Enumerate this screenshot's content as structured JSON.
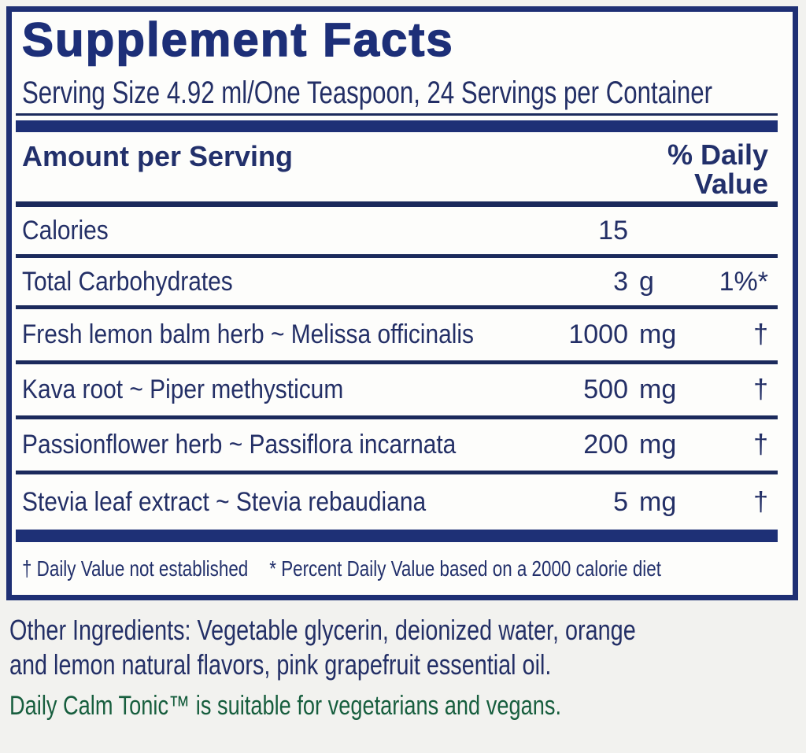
{
  "colors": {
    "navy_text": "#232f66",
    "navy_title": "#1d2f78",
    "navy_bar": "#1e3076",
    "divider": "#1b2a5c",
    "green_note": "#175e3e",
    "label_background": "#fdfdfb",
    "page_background": "#f2f2ef"
  },
  "label": {
    "title": "Supplement Facts",
    "serving_line": "Serving Size 4.92 ml/One Teaspoon, 24 Servings per Container",
    "header": {
      "left": "Amount per Serving",
      "right_line1": "% Daily",
      "right_line2": "Value"
    },
    "rows": [
      {
        "name": "Calories",
        "amount": "15",
        "unit": "",
        "dv": ""
      },
      {
        "name": "Total Carbohydrates",
        "amount": "3",
        "unit": "g",
        "dv": "1%*"
      },
      {
        "name": "Fresh lemon balm herb ~ Melissa officinalis",
        "amount": "1000",
        "unit": "mg",
        "dv": "†"
      },
      {
        "name": "Kava root ~ Piper methysticum",
        "amount": "500",
        "unit": "mg",
        "dv": "†"
      },
      {
        "name": "Passionflower herb ~ Passiflora incarnata",
        "amount": "200",
        "unit": "mg",
        "dv": "†"
      },
      {
        "name": "Stevia leaf extract ~ Stevia rebaudiana",
        "amount": "5",
        "unit": "mg",
        "dv": "†"
      }
    ],
    "footnote": {
      "dagger_note": "† Daily Value not established",
      "asterisk_note": "* Percent Daily Value based on a 2000 calorie diet"
    }
  },
  "below": {
    "other_ingredients_lines": [
      "Other Ingredients: Vegetable glycerin, deionized water, orange",
      "and lemon natural flavors, pink grapefruit essential oil."
    ],
    "vegan_note": "Daily Calm Tonic™ is suitable for vegetarians and vegans."
  }
}
